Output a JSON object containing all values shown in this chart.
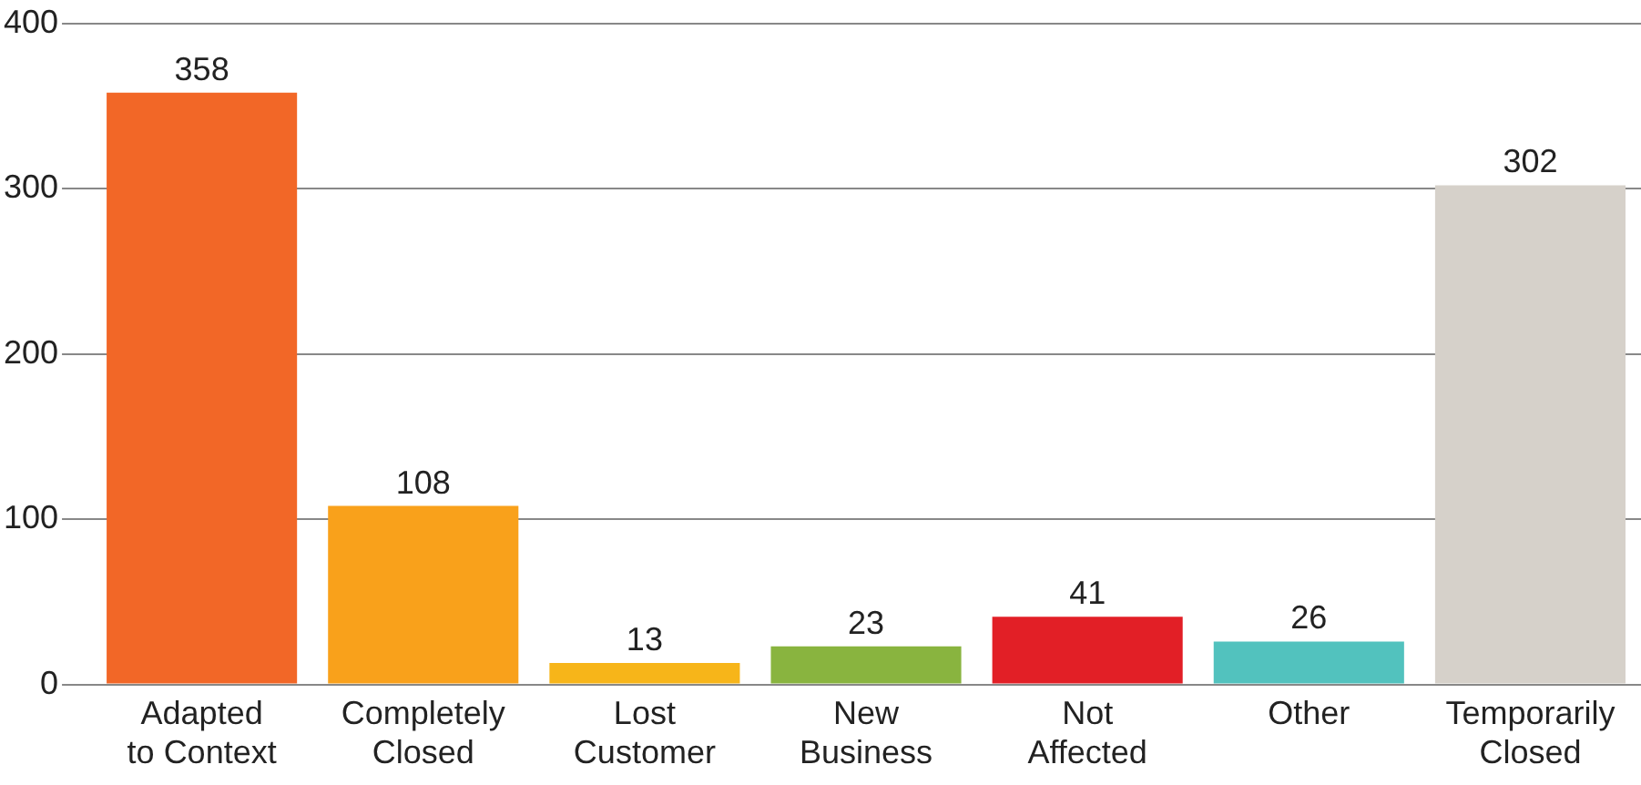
{
  "chart_data": {
    "type": "bar",
    "categories": [
      "Adapted to Context",
      "Completely Closed",
      "Lost Customer",
      "New Business",
      "Not Affected",
      "Other",
      "Temporarily Closed"
    ],
    "values": [
      358,
      108,
      13,
      23,
      41,
      26,
      302
    ],
    "colors": [
      "#f26727",
      "#f9a11b",
      "#f7b519",
      "#89b43f",
      "#e21f26",
      "#52c2be",
      "#d6d1ca"
    ],
    "ylim": [
      0,
      400
    ],
    "yticks": [
      0,
      100,
      200,
      300,
      400
    ],
    "grid": "y",
    "legend": false,
    "data_labels": true
  }
}
